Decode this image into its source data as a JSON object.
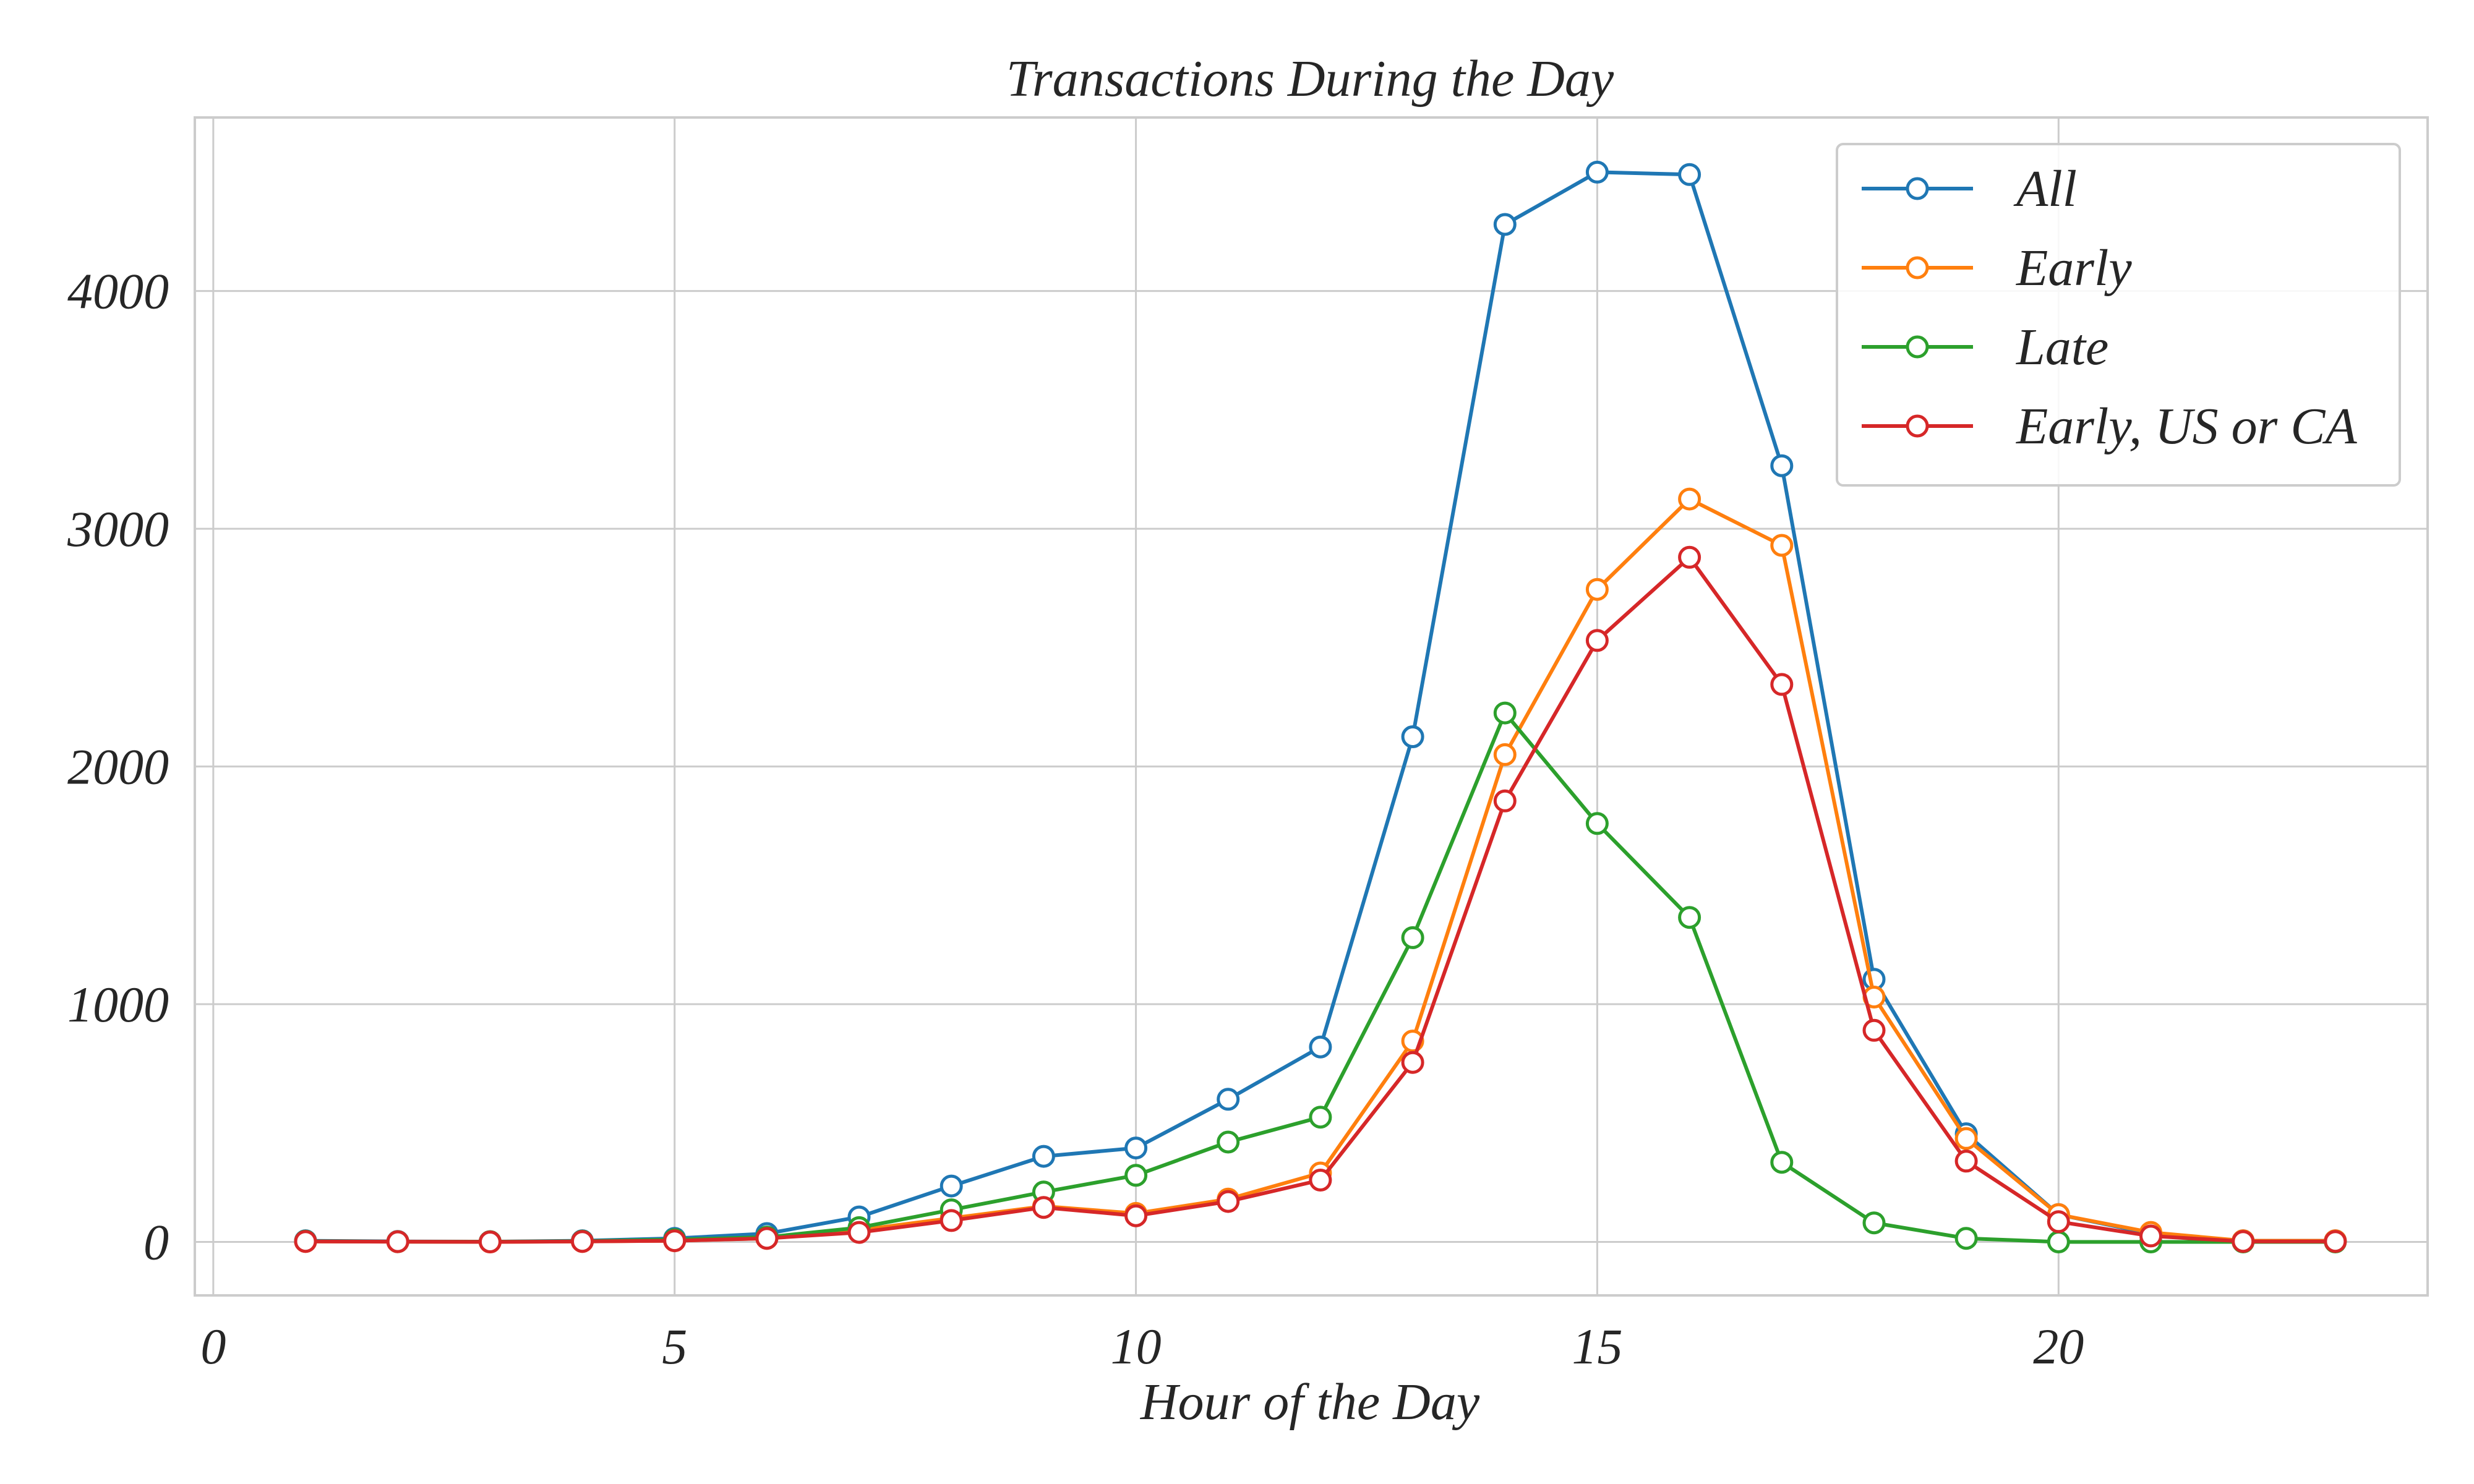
{
  "chart_data": {
    "type": "line",
    "title": "Transactions During the Day",
    "xlabel": "Hour of the Day",
    "ylabel": "",
    "xlim": [
      -0.2,
      24
    ],
    "ylim": [
      -225,
      4730
    ],
    "xticks": [
      0,
      5,
      10,
      15,
      20
    ],
    "yticks": [
      0,
      1000,
      2000,
      3000,
      4000
    ],
    "grid": true,
    "marker": "hollow-circle",
    "legend_position": "top-right",
    "x": [
      1,
      2,
      3,
      4,
      5,
      6,
      7,
      8,
      9,
      10,
      11,
      12,
      13,
      14,
      15,
      16,
      17,
      18,
      19,
      20,
      21,
      22,
      23
    ],
    "series": [
      {
        "name": "All",
        "color": "#1f77b4",
        "values": [
          5,
          2,
          1,
          5,
          15,
          35,
          105,
          235,
          360,
          395,
          600,
          820,
          2125,
          4280,
          4500,
          4490,
          3265,
          1105,
          455,
          115,
          35,
          5,
          5
        ]
      },
      {
        "name": "Early",
        "color": "#ff7f0e",
        "values": [
          2,
          1,
          0,
          2,
          5,
          15,
          50,
          100,
          150,
          120,
          180,
          290,
          845,
          2050,
          2745,
          3125,
          2930,
          1030,
          435,
          115,
          40,
          5,
          5
        ]
      },
      {
        "name": "Late",
        "color": "#2ca02c",
        "values": [
          3,
          1,
          1,
          3,
          10,
          20,
          60,
          135,
          210,
          280,
          420,
          525,
          1280,
          2225,
          1760,
          1365,
          335,
          80,
          15,
          0,
          0,
          0,
          0
        ]
      },
      {
        "name": "Early, US or CA",
        "color": "#d62728",
        "values": [
          2,
          1,
          0,
          2,
          5,
          15,
          40,
          90,
          145,
          110,
          170,
          260,
          755,
          1855,
          2530,
          2880,
          2345,
          890,
          340,
          85,
          25,
          2,
          2
        ]
      }
    ]
  }
}
